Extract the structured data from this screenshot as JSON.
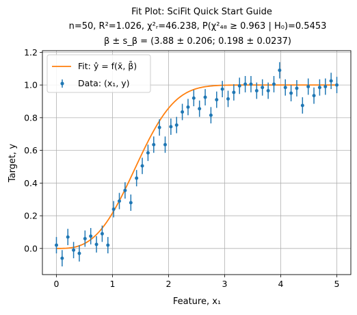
{
  "chart_data": {
    "type": "scatter",
    "title_lines": [
      "Fit Plot: SciFit Quick Start Guide",
      "n=50, R²=1.026, χ²ᵣ=46.238, P(χ²₄₈ ≥ 0.963 | H₀)=0.5453",
      "β ± s_β = (3.88 ± 0.206; 0.198 ± 0.0237)"
    ],
    "xlabel": "Feature, x₁",
    "ylabel": "Target, y",
    "xlim": [
      -0.25,
      5.25
    ],
    "ylim": [
      -0.16,
      1.21
    ],
    "xticks": [
      0,
      1,
      2,
      3,
      4,
      5
    ],
    "xtick_labels": [
      "0",
      "1",
      "2",
      "3",
      "4",
      "5"
    ],
    "yticks": [
      0.0,
      0.2,
      0.4,
      0.6,
      0.8,
      1.0,
      1.2
    ],
    "ytick_labels": [
      "0.0",
      "0.2",
      "0.4",
      "0.6",
      "0.8",
      "1.0",
      "1.2"
    ],
    "grid": true,
    "legend_position": "top-left",
    "legend": [
      {
        "label": "Fit: ŷ = f(x̄, β̄)",
        "kind": "line",
        "color": "#ff7f0e"
      },
      {
        "label": "Data: (x₁, y)",
        "kind": "errorbar",
        "color": "#1f77b4"
      }
    ],
    "series": [
      {
        "name": "Data: (x₁, y)",
        "type": "errorbar",
        "color": "#1f77b4",
        "x": [
          0.0,
          0.102,
          0.204,
          0.306,
          0.408,
          0.51,
          0.612,
          0.714,
          0.816,
          0.918,
          1.02,
          1.122,
          1.224,
          1.327,
          1.429,
          1.531,
          1.633,
          1.735,
          1.837,
          1.939,
          2.041,
          2.143,
          2.245,
          2.347,
          2.449,
          2.551,
          2.653,
          2.755,
          2.857,
          2.959,
          3.061,
          3.163,
          3.265,
          3.367,
          3.469,
          3.571,
          3.673,
          3.776,
          3.878,
          3.98,
          4.082,
          4.184,
          4.286,
          4.388,
          4.49,
          4.592,
          4.694,
          4.796,
          4.898,
          5.0
        ],
        "y": [
          0.02,
          -0.06,
          0.07,
          -0.01,
          -0.03,
          0.06,
          0.075,
          0.025,
          0.09,
          0.02,
          0.24,
          0.29,
          0.355,
          0.28,
          0.43,
          0.505,
          0.585,
          0.635,
          0.74,
          0.635,
          0.745,
          0.755,
          0.835,
          0.865,
          0.92,
          0.855,
          0.925,
          0.815,
          0.91,
          0.975,
          0.915,
          0.955,
          0.995,
          1.005,
          1.005,
          0.965,
          0.985,
          0.965,
          1.005,
          1.09,
          0.985,
          0.95,
          0.98,
          0.875,
          0.99,
          0.935,
          0.985,
          0.99,
          1.025,
          1.0
        ],
        "yerr": [
          0.05,
          0.05,
          0.05,
          0.05,
          0.05,
          0.05,
          0.05,
          0.05,
          0.05,
          0.05,
          0.05,
          0.05,
          0.05,
          0.05,
          0.05,
          0.05,
          0.05,
          0.05,
          0.05,
          0.05,
          0.05,
          0.05,
          0.05,
          0.05,
          0.05,
          0.05,
          0.05,
          0.05,
          0.05,
          0.05,
          0.05,
          0.05,
          0.05,
          0.05,
          0.05,
          0.05,
          0.05,
          0.05,
          0.05,
          0.05,
          0.05,
          0.05,
          0.05,
          0.05,
          0.05,
          0.05,
          0.05,
          0.05,
          0.05,
          0.05
        ]
      },
      {
        "name": "Fit: ŷ = f(x̄, β̄)",
        "type": "line",
        "color": "#ff7f0e",
        "model": "y = 1 - exp(-(x/1.6)^3)",
        "x_range": [
          0,
          5
        ]
      }
    ]
  }
}
